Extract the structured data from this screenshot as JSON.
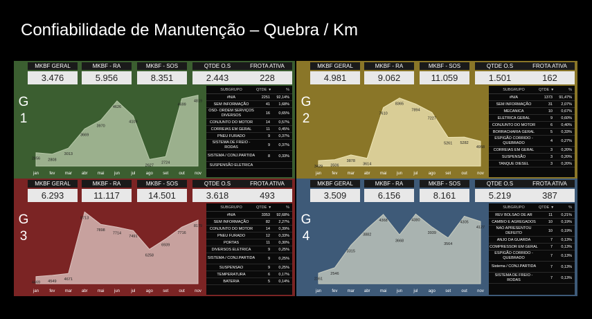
{
  "title": "Confiabilidade de Manutenção – Quebra / Km",
  "footer": "",
  "months": [
    "jan",
    "fev",
    "mar",
    "abr",
    "mai",
    "jun",
    "jul",
    "ago",
    "set",
    "out",
    "nov"
  ],
  "table_headers": {
    "subgroup": "SUBGRUPO",
    "qty": "QTDE",
    "pct": "%"
  },
  "groups": [
    {
      "id": "g1",
      "label_g": "G",
      "label_n": "1",
      "bg": "#3b5e30",
      "area": "#b6c8a8",
      "kpis": [
        {
          "label": "MKBF GERAL",
          "value": "3.476"
        },
        {
          "label": "MKBF - RA",
          "value": "5.956"
        },
        {
          "label": "MKBF - SOS",
          "value": "8.351"
        },
        {
          "label": "QTDE O.S",
          "value": "2.443"
        },
        {
          "label": "FROTA ATIVA",
          "value": "228"
        }
      ],
      "rows": [
        {
          "name": "#N/A",
          "qty": "2251",
          "pct": "92,14%"
        },
        {
          "name": "SEM INFORMAÇÃO",
          "qty": "41",
          "pct": "1,68%"
        },
        {
          "name": "OSD- ORDEM SERVIÇOS DIVERSOS",
          "qty": "16",
          "pct": "0,65%"
        },
        {
          "name": "CONJUNTO DO MOTOR",
          "qty": "14",
          "pct": "0,57%"
        },
        {
          "name": "CORREIAS EM GERAL",
          "qty": "11",
          "pct": "0,45%"
        },
        {
          "name": "PNEU FURADO",
          "qty": "9",
          "pct": "0,37%"
        },
        {
          "name": "SISTEMA DE FREIO - RODAS",
          "qty": "9",
          "pct": "0,37%"
        },
        {
          "name": "SISTEMA / CONJ.PARTIDA",
          "qty": "8",
          "pct": "0,33%"
        },
        {
          "name": "SUSPENSÃO ELETRICA",
          "qty": "",
          "pct": ""
        }
      ]
    },
    {
      "id": "g2",
      "label_g": "G",
      "label_n": "2",
      "bg": "#8a7628",
      "area": "#efe6b6",
      "kpis": [
        {
          "label": "MKBF GERAL",
          "value": "4.981"
        },
        {
          "label": "MKBF - RA",
          "value": "9.062"
        },
        {
          "label": "MKBF - SOS",
          "value": "11.059"
        },
        {
          "label": "QTDE O.S",
          "value": "1.501"
        },
        {
          "label": "FROTA ATIVA",
          "value": "162"
        }
      ],
      "rows": [
        {
          "name": "#N/A",
          "qty": "1373",
          "pct": "91,47%"
        },
        {
          "name": "SEM INFORMAÇÃO",
          "qty": "31",
          "pct": "2,07%"
        },
        {
          "name": "MECANICA",
          "qty": "10",
          "pct": "0,67%"
        },
        {
          "name": "ELETRICA GERAL",
          "qty": "9",
          "pct": "0,60%"
        },
        {
          "name": "CONJUNTO DO MOTOR",
          "qty": "6",
          "pct": "0,40%"
        },
        {
          "name": "BORRACHARIA GERAL",
          "qty": "5",
          "pct": "0,33%"
        },
        {
          "name": "ESPIGÃO CORRIDO - QUEBRADO",
          "qty": "4",
          "pct": "0,27%"
        },
        {
          "name": "CORREIAS EM GERAL",
          "qty": "3",
          "pct": "0,20%"
        },
        {
          "name": "SUSPENSÃO",
          "qty": "3",
          "pct": "0,20%"
        },
        {
          "name": "TANQUE DIESEL",
          "qty": "3",
          "pct": "0,20%"
        }
      ]
    },
    {
      "id": "g3",
      "label_g": "G",
      "label_n": "3",
      "bg": "#7b2424",
      "area": "#dcc4c0",
      "kpis": [
        {
          "label": "MKBF GERAL",
          "value": "6.293"
        },
        {
          "label": "MKBF - RA",
          "value": "11.117"
        },
        {
          "label": "MKBF - SOS",
          "value": "14.501"
        },
        {
          "label": "QTDE O.S",
          "value": "3.618"
        },
        {
          "label": "FROTA ATIVA",
          "value": "493"
        }
      ],
      "rows": [
        {
          "name": "#N/A",
          "qty": "3353",
          "pct": "92,68%"
        },
        {
          "name": "SEM INFORMAÇÃO",
          "qty": "82",
          "pct": "2,27%"
        },
        {
          "name": "CONJUNTO DO MOTOR",
          "qty": "14",
          "pct": "0,39%"
        },
        {
          "name": "PNEU FURADO",
          "qty": "12",
          "pct": "0,33%"
        },
        {
          "name": "PORTAS",
          "qty": "11",
          "pct": "0,30%"
        },
        {
          "name": "DIVERSOS ELETRICA",
          "qty": "9",
          "pct": "0,25%"
        },
        {
          "name": "SISTEMA / CONJ.PARTIDA",
          "qty": "9",
          "pct": "0,25%"
        },
        {
          "name": "SUSPENSAO",
          "qty": "9",
          "pct": "0,25%"
        },
        {
          "name": "TEMPERATURA",
          "qty": "6",
          "pct": "0,17%"
        },
        {
          "name": "BATERIA",
          "qty": "5",
          "pct": "0,14%"
        }
      ]
    },
    {
      "id": "g4",
      "label_g": "G",
      "label_n": "4",
      "bg": "#3e5a78",
      "area": "#c8ccc0",
      "kpis": [
        {
          "label": "MKBF GERAL",
          "value": "3.509"
        },
        {
          "label": "MKBF - RA",
          "value": "6.156"
        },
        {
          "label": "MKBF - SOS",
          "value": "8.161"
        },
        {
          "label": "QTDE O.S",
          "value": "5.219"
        },
        {
          "label": "FROTA ATIVA",
          "value": "387"
        }
      ],
      "rows": [
        {
          "name": "REV BOLSAO DE AR",
          "qty": "11",
          "pct": "0,21%"
        },
        {
          "name": "CAMBIO E AGREGADOS",
          "qty": "10",
          "pct": "0,19%"
        },
        {
          "name": "NAO APRESENTOU DEFEITO",
          "qty": "10",
          "pct": "0,19%"
        },
        {
          "name": "ANJO DA GUARDA",
          "qty": "7",
          "pct": "0,13%"
        },
        {
          "name": "COMPRESSOR EM GERAL",
          "qty": "7",
          "pct": "0,13%"
        },
        {
          "name": "ESPIGÃO CORRIDO - QUEBRADO",
          "qty": "7",
          "pct": "0,13%"
        },
        {
          "name": "Sistema / CONJ.PARTIDA",
          "qty": "7",
          "pct": "0,13%"
        },
        {
          "name": "SISTEMA DE FREIO - RODAS",
          "qty": "7",
          "pct": "0,13%"
        }
      ]
    }
  ],
  "chart_data": [
    {
      "type": "area",
      "group": "G 1",
      "categories": [
        "jan",
        "fev",
        "mar",
        "abr",
        "mai",
        "jun",
        "jul",
        "ago",
        "set",
        "out",
        "nov"
      ],
      "values": [
        2856,
        2808,
        3013,
        3669,
        3970,
        4626,
        4109,
        2627,
        2724,
        4699,
        4819
      ],
      "ylim": [
        2400,
        5000
      ]
    },
    {
      "type": "area",
      "group": "G 2",
      "categories": [
        "jan",
        "fev",
        "mar",
        "abr",
        "mai",
        "jun",
        "jul",
        "ago",
        "set",
        "out",
        "nov"
      ],
      "values": [
        3429,
        3506,
        3878,
        3614,
        7610,
        8365,
        7894,
        7227,
        5261,
        5282,
        4958
      ],
      "ylim": [
        3000,
        9000
      ]
    },
    {
      "type": "area",
      "group": "G 3",
      "categories": [
        "jan",
        "fev",
        "mar",
        "abr",
        "mai",
        "jun",
        "jul",
        "ago",
        "set",
        "out",
        "nov"
      ],
      "values": [
        4469,
        4549,
        4671,
        8713,
        7898,
        7714,
        7491,
        6258,
        6939,
        7716,
        8179
      ],
      "ylim": [
        4000,
        9000
      ]
    },
    {
      "type": "area",
      "group": "G 4",
      "categories": [
        "jan",
        "fev",
        "mar",
        "abr",
        "mai",
        "jun",
        "jul",
        "ago",
        "set",
        "out",
        "nov"
      ],
      "values": [
        2361,
        2546,
        3315,
        3882,
        4368,
        3668,
        4380,
        3939,
        3564,
        4305,
        4127
      ],
      "ylim": [
        2000,
        4600
      ]
    }
  ]
}
